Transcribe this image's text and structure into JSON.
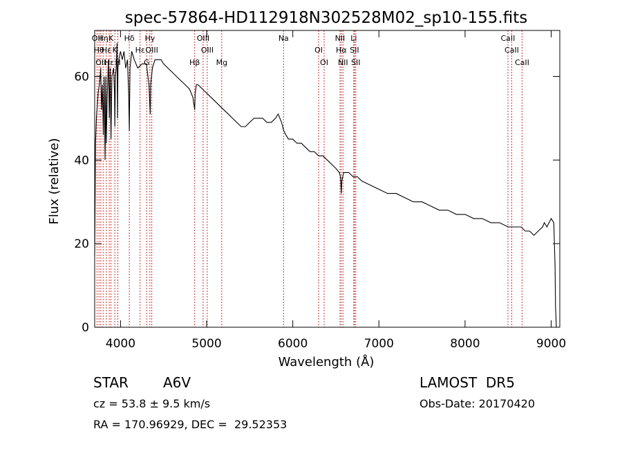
{
  "chart_data": {
    "type": "line",
    "title": "spec-57864-HD112918N302528M02_sp10-155.fits",
    "xlabel": "Wavelength (Å)",
    "ylabel": "Flux (relative)",
    "xlim": [
      3700,
      9100
    ],
    "ylim": [
      0,
      71
    ],
    "x_ticks": [
      4000,
      5000,
      6000,
      7000,
      8000,
      9000
    ],
    "y_ticks": [
      0,
      20,
      40,
      60
    ],
    "grid": false,
    "series": [
      {
        "x": [
          3700,
          3710,
          3720,
          3740,
          3760,
          3770,
          3780,
          3790,
          3800,
          3810,
          3820,
          3830,
          3836,
          3845,
          3860,
          3870,
          3880,
          3889,
          3900,
          3920,
          3930,
          3934,
          3940,
          3950,
          3960,
          3965,
          3970,
          3980,
          4000,
          4020,
          4040,
          4060,
          4080,
          4095,
          4102,
          4110,
          4130,
          4160,
          4200,
          4250,
          4300,
          4330,
          4340,
          4345,
          4350,
          4370,
          4400,
          4430,
          4470,
          4500,
          4550,
          4600,
          4650,
          4700,
          4750,
          4800,
          4840,
          4855,
          4861,
          4867,
          4880,
          4900,
          4950,
          5000,
          5050,
          5100,
          5150,
          5200,
          5250,
          5300,
          5350,
          5400,
          5450,
          5500,
          5550,
          5600,
          5650,
          5700,
          5750,
          5800,
          5830,
          5870,
          5895,
          5920,
          5950,
          6000,
          6050,
          6100,
          6150,
          6200,
          6250,
          6300,
          6350,
          6400,
          6450,
          6500,
          6540,
          6555,
          6563,
          6570,
          6590,
          6620,
          6650,
          6700,
          6750,
          6800,
          6900,
          7000,
          7100,
          7200,
          7300,
          7400,
          7500,
          7600,
          7700,
          7800,
          7900,
          8000,
          8100,
          8200,
          8300,
          8400,
          8500,
          8550,
          8600,
          8650,
          8700,
          8750,
          8800,
          8850,
          8900,
          8920,
          8950,
          9000,
          9030,
          9045,
          9050,
          9060
        ],
        "y": [
          17,
          44,
          50,
          56,
          59,
          62,
          52,
          58,
          46,
          60,
          40,
          60,
          44,
          55,
          64,
          50,
          62,
          45,
          60,
          62,
          56,
          48,
          60,
          62,
          68,
          50,
          62,
          64,
          66,
          64,
          66,
          62,
          64,
          56,
          47,
          62,
          66,
          64,
          62,
          63,
          63,
          58,
          53,
          51,
          58,
          62,
          64,
          64,
          64,
          63,
          62,
          61,
          60,
          59,
          58,
          57,
          55,
          53,
          52,
          56,
          58,
          58,
          57,
          56,
          55,
          54,
          53,
          52,
          51,
          50,
          49,
          48,
          48,
          49,
          50,
          50,
          50,
          49,
          49,
          50,
          51,
          49,
          47,
          46,
          45,
          45,
          44,
          44,
          43,
          42,
          42,
          41,
          41,
          40,
          39,
          38,
          37,
          36,
          32,
          35,
          37,
          37,
          37,
          36,
          36,
          35,
          34,
          33,
          32,
          32,
          31,
          30,
          30,
          29,
          28,
          28,
          27,
          27,
          26,
          26,
          25,
          25,
          24,
          24,
          24,
          24,
          23,
          23,
          22,
          23,
          24,
          25,
          24,
          26,
          25,
          15,
          5,
          0
        ]
      }
    ],
    "line_labels": [
      {
        "x": 3727,
        "text": "OII"
      },
      {
        "x": 3750,
        "text": "Hθ"
      },
      {
        "x": 3771,
        "text": "OII"
      },
      {
        "x": 3798,
        "text": "Hη"
      },
      {
        "x": 3835,
        "text": "Hε"
      },
      {
        "x": 3869,
        "text": "Hε"
      },
      {
        "x": 3889,
        "text": "K"
      },
      {
        "x": 3934,
        "text": "K"
      },
      {
        "x": 3969,
        "text": "H"
      },
      {
        "x": 4102,
        "text": "Hδ"
      },
      {
        "x": 4227,
        "text": "Hε"
      },
      {
        "x": 4304,
        "text": "G"
      },
      {
        "x": 4341,
        "text": "Hγ"
      },
      {
        "x": 4363,
        "text": "OIII"
      },
      {
        "x": 4861,
        "text": "Hβ"
      },
      {
        "x": 4959,
        "text": "OIII"
      },
      {
        "x": 5007,
        "text": "OIII"
      },
      {
        "x": 5175,
        "text": "Mg"
      },
      {
        "x": 5893,
        "text": "Na"
      },
      {
        "x": 6300,
        "text": "OI"
      },
      {
        "x": 6364,
        "text": "OI"
      },
      {
        "x": 6548,
        "text": "NII"
      },
      {
        "x": 6563,
        "text": "Hα"
      },
      {
        "x": 6583,
        "text": "NII"
      },
      {
        "x": 6708,
        "text": "Li"
      },
      {
        "x": 6716,
        "text": "SII"
      },
      {
        "x": 6731,
        "text": "SII"
      },
      {
        "x": 8498,
        "text": "CaII"
      },
      {
        "x": 8542,
        "text": "CaII"
      },
      {
        "x": 8662,
        "text": "CaII"
      }
    ]
  },
  "info": {
    "class_label": "STAR",
    "subclass": "A6V",
    "survey": "LAMOST  DR5",
    "cz": "cz = 53.8 ± 9.5 km/s",
    "obs_date": "Obs-Date: 20170420",
    "radec": "RA = 170.96929, DEC =  29.52353"
  }
}
